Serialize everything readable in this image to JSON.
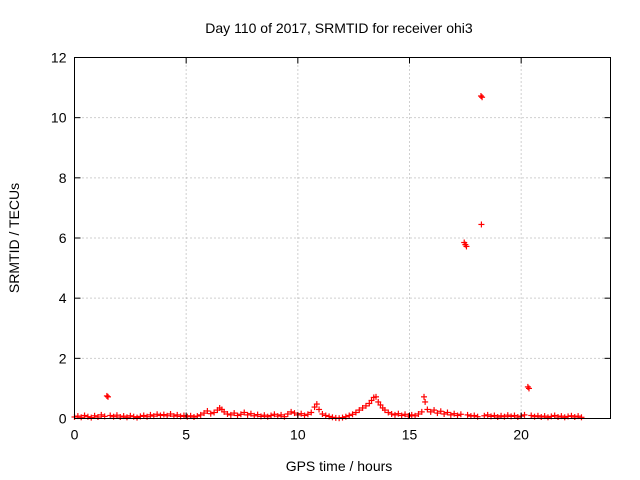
{
  "chart_data": {
    "type": "scatter",
    "title": "Day 110 of 2017, SRMTID for receiver ohi3",
    "xlabel": "GPS time / hours",
    "ylabel": "SRMTID / TECUs",
    "xlim": [
      0,
      24
    ],
    "ylim": [
      0,
      12
    ],
    "xticks": [
      0,
      5,
      10,
      15,
      20
    ],
    "yticks": [
      0,
      2,
      4,
      6,
      8,
      10,
      12
    ],
    "grid": true,
    "marker": "+",
    "color": "#ff0000",
    "series": [
      {
        "name": "SRMTID",
        "points": [
          [
            0.0,
            0.05
          ],
          [
            0.15,
            0.08
          ],
          [
            0.3,
            0.04
          ],
          [
            0.45,
            0.1
          ],
          [
            0.6,
            0.06
          ],
          [
            0.75,
            0.03
          ],
          [
            0.9,
            0.09
          ],
          [
            1.05,
            0.05
          ],
          [
            1.2,
            0.12
          ],
          [
            1.35,
            0.07
          ],
          [
            1.45,
            0.75
          ],
          [
            1.5,
            0.72
          ],
          [
            1.6,
            0.1
          ],
          [
            1.75,
            0.06
          ],
          [
            1.9,
            0.11
          ],
          [
            2.05,
            0.05
          ],
          [
            2.2,
            0.08
          ],
          [
            2.35,
            0.04
          ],
          [
            2.5,
            0.09
          ],
          [
            2.65,
            0.06
          ],
          [
            2.8,
            0.03
          ],
          [
            2.95,
            0.07
          ],
          [
            3.1,
            0.1
          ],
          [
            3.25,
            0.06
          ],
          [
            3.4,
            0.12
          ],
          [
            3.55,
            0.08
          ],
          [
            3.7,
            0.14
          ],
          [
            3.85,
            0.1
          ],
          [
            4.0,
            0.13
          ],
          [
            4.15,
            0.09
          ],
          [
            4.3,
            0.15
          ],
          [
            4.45,
            0.08
          ],
          [
            4.6,
            0.12
          ],
          [
            4.75,
            0.07
          ],
          [
            4.9,
            0.1
          ],
          [
            5.05,
            0.06
          ],
          [
            5.2,
            0.09
          ],
          [
            5.35,
            0.05
          ],
          [
            5.5,
            0.08
          ],
          [
            5.65,
            0.12
          ],
          [
            5.8,
            0.18
          ],
          [
            5.95,
            0.25
          ],
          [
            6.1,
            0.16
          ],
          [
            6.25,
            0.2
          ],
          [
            6.4,
            0.28
          ],
          [
            6.5,
            0.35
          ],
          [
            6.6,
            0.3
          ],
          [
            6.7,
            0.22
          ],
          [
            6.85,
            0.15
          ],
          [
            7.0,
            0.12
          ],
          [
            7.15,
            0.18
          ],
          [
            7.3,
            0.1
          ],
          [
            7.45,
            0.14
          ],
          [
            7.6,
            0.2
          ],
          [
            7.75,
            0.12
          ],
          [
            7.9,
            0.16
          ],
          [
            8.05,
            0.09
          ],
          [
            8.2,
            0.13
          ],
          [
            8.35,
            0.07
          ],
          [
            8.5,
            0.11
          ],
          [
            8.65,
            0.06
          ],
          [
            8.8,
            0.1
          ],
          [
            8.95,
            0.14
          ],
          [
            9.1,
            0.08
          ],
          [
            9.25,
            0.12
          ],
          [
            9.4,
            0.06
          ],
          [
            9.55,
            0.15
          ],
          [
            9.7,
            0.22
          ],
          [
            9.85,
            0.18
          ],
          [
            10.0,
            0.12
          ],
          [
            10.15,
            0.16
          ],
          [
            10.3,
            0.1
          ],
          [
            10.45,
            0.14
          ],
          [
            10.6,
            0.2
          ],
          [
            10.75,
            0.38
          ],
          [
            10.85,
            0.48
          ],
          [
            10.95,
            0.3
          ],
          [
            11.1,
            0.15
          ],
          [
            11.25,
            0.1
          ],
          [
            11.4,
            0.07
          ],
          [
            11.55,
            0.04
          ],
          [
            11.7,
            0.02
          ],
          [
            11.85,
            0.01
          ],
          [
            12.0,
            0.03
          ],
          [
            12.15,
            0.06
          ],
          [
            12.3,
            0.1
          ],
          [
            12.45,
            0.14
          ],
          [
            12.6,
            0.2
          ],
          [
            12.75,
            0.28
          ],
          [
            12.9,
            0.35
          ],
          [
            13.05,
            0.42
          ],
          [
            13.2,
            0.5
          ],
          [
            13.3,
            0.6
          ],
          [
            13.4,
            0.7
          ],
          [
            13.5,
            0.72
          ],
          [
            13.6,
            0.55
          ],
          [
            13.7,
            0.45
          ],
          [
            13.8,
            0.35
          ],
          [
            13.9,
            0.28
          ],
          [
            14.05,
            0.2
          ],
          [
            14.2,
            0.15
          ],
          [
            14.35,
            0.12
          ],
          [
            14.5,
            0.16
          ],
          [
            14.65,
            0.1
          ],
          [
            14.8,
            0.14
          ],
          [
            14.95,
            0.08
          ],
          [
            15.1,
            0.12
          ],
          [
            15.25,
            0.09
          ],
          [
            15.4,
            0.15
          ],
          [
            15.55,
            0.22
          ],
          [
            15.65,
            0.72
          ],
          [
            15.7,
            0.55
          ],
          [
            15.8,
            0.3
          ],
          [
            15.95,
            0.22
          ],
          [
            16.1,
            0.28
          ],
          [
            16.25,
            0.18
          ],
          [
            16.4,
            0.24
          ],
          [
            16.55,
            0.15
          ],
          [
            16.7,
            0.2
          ],
          [
            16.85,
            0.12
          ],
          [
            17.0,
            0.16
          ],
          [
            17.15,
            0.1
          ],
          [
            17.3,
            0.14
          ],
          [
            17.45,
            5.85
          ],
          [
            17.5,
            5.78
          ],
          [
            17.55,
            5.72
          ],
          [
            17.6,
            0.12
          ],
          [
            17.75,
            0.08
          ],
          [
            17.9,
            0.1
          ],
          [
            18.05,
            0.06
          ],
          [
            18.2,
            10.72
          ],
          [
            18.25,
            10.68
          ],
          [
            18.22,
            6.45
          ],
          [
            18.35,
            0.09
          ],
          [
            18.5,
            0.12
          ],
          [
            18.65,
            0.07
          ],
          [
            18.8,
            0.1
          ],
          [
            18.95,
            0.05
          ],
          [
            19.1,
            0.09
          ],
          [
            19.25,
            0.06
          ],
          [
            19.4,
            0.11
          ],
          [
            19.55,
            0.07
          ],
          [
            19.7,
            0.1
          ],
          [
            19.85,
            0.05
          ],
          [
            20.0,
            0.08
          ],
          [
            20.15,
            0.12
          ],
          [
            20.3,
            1.05
          ],
          [
            20.35,
            1.0
          ],
          [
            20.45,
            0.1
          ],
          [
            20.6,
            0.06
          ],
          [
            20.75,
            0.09
          ],
          [
            20.9,
            0.05
          ],
          [
            21.05,
            0.08
          ],
          [
            21.2,
            0.04
          ],
          [
            21.35,
            0.07
          ],
          [
            21.5,
            0.1
          ],
          [
            21.65,
            0.05
          ],
          [
            21.8,
            0.08
          ],
          [
            21.95,
            0.04
          ],
          [
            22.1,
            0.07
          ],
          [
            22.25,
            0.09
          ],
          [
            22.4,
            0.05
          ],
          [
            22.55,
            0.08
          ],
          [
            22.7,
            0.04
          ]
        ]
      }
    ]
  }
}
